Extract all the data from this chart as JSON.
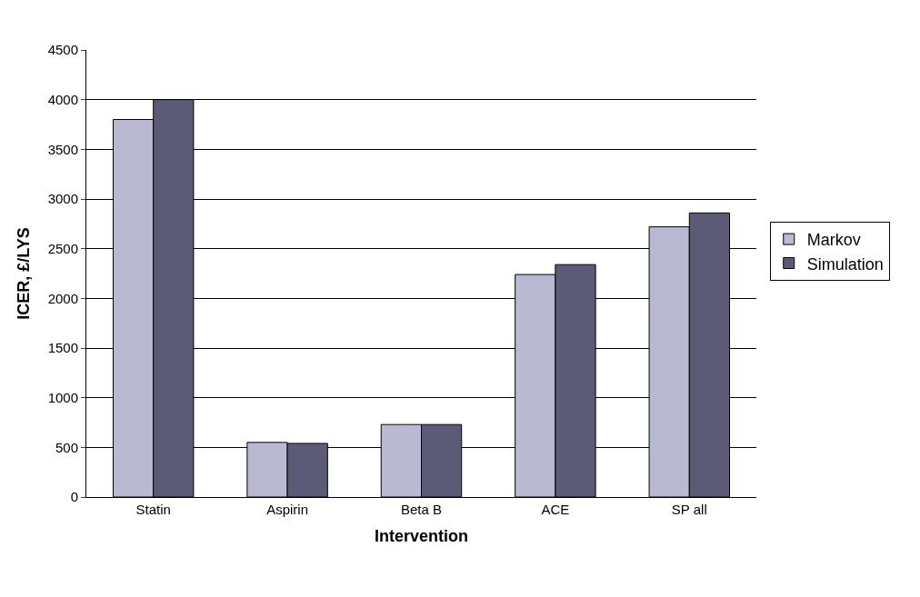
{
  "chart_data": {
    "type": "bar",
    "xlabel": "Intervention",
    "ylabel": "ICER, £/LYS",
    "categories": [
      "Statin",
      "Aspirin",
      "Beta B",
      "ACE",
      "SP all"
    ],
    "series": [
      {
        "name": "Markov",
        "color": "#b9b9d2",
        "values": [
          3800,
          550,
          730,
          2240,
          2720
        ]
      },
      {
        "name": "Simulation",
        "color": "#5b5b78",
        "values": [
          4000,
          540,
          730,
          2340,
          2860
        ]
      }
    ],
    "ylim": [
      0,
      4500
    ],
    "yticks": [
      0,
      500,
      1000,
      1500,
      2000,
      2500,
      3000,
      3500,
      4000,
      4500
    ],
    "grid": "y",
    "legend": "right"
  }
}
